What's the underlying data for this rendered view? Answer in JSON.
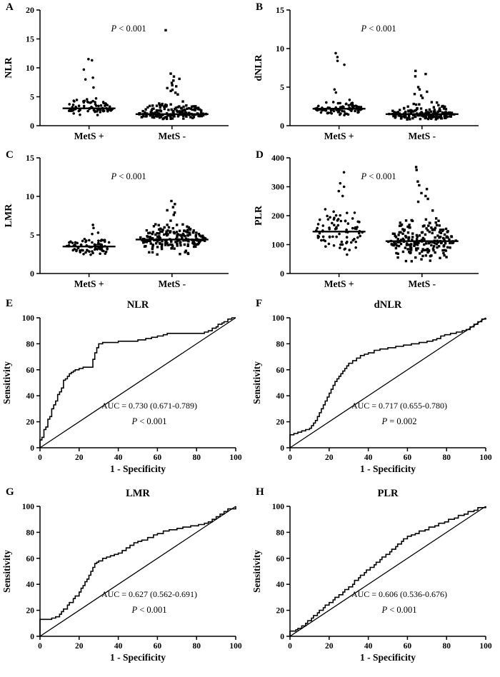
{
  "figure": {
    "description": "Eight-panel figure: dot plots of inflammatory ratios by MetS status (A-D) and ROC curves (E-H)",
    "colors": {
      "ink": "#000000",
      "background": "#ffffff"
    }
  },
  "chart_data": [
    {
      "panel": "A",
      "type": "scatter",
      "ylabel": "NLR",
      "ylim": [
        0,
        20
      ],
      "yticks": [
        0,
        5,
        10,
        15,
        20
      ],
      "categories": [
        "MetS +",
        "MetS -"
      ],
      "annotation": "P < 0.001",
      "groups": [
        {
          "label": "MetS +",
          "symbol": "circle",
          "n": 78,
          "median": 3.0,
          "bulk_range": [
            1.6,
            5.2
          ],
          "outliers": [
            6.6,
            8.0,
            8.3,
            9.7,
            11.3,
            11.5
          ]
        },
        {
          "label": "MetS -",
          "symbol": "square",
          "n": 165,
          "median": 2.0,
          "bulk_range": [
            0.9,
            4.6
          ],
          "outliers": [
            5.4,
            5.7,
            6.0,
            6.2,
            6.5,
            6.8,
            7.0,
            7.4,
            7.8,
            8.1,
            8.5,
            9.0,
            16.5
          ]
        }
      ]
    },
    {
      "panel": "B",
      "type": "scatter",
      "ylabel": "dNLR",
      "ylim": [
        0,
        15
      ],
      "yticks": [
        0,
        5,
        10,
        15
      ],
      "categories": [
        "MetS +",
        "MetS -"
      ],
      "annotation": "P < 0.001",
      "groups": [
        {
          "label": "MetS +",
          "symbol": "circle",
          "n": 78,
          "median": 2.2,
          "bulk_range": [
            1.0,
            3.6
          ],
          "outliers": [
            4.3,
            4.7,
            7.9,
            8.4,
            8.9,
            9.4
          ]
        },
        {
          "label": "MetS -",
          "symbol": "square",
          "n": 165,
          "median": 1.5,
          "bulk_range": [
            0.6,
            3.2
          ],
          "outliers": [
            3.6,
            3.9,
            4.1,
            4.4,
            4.7,
            5.0,
            6.4,
            6.7,
            7.1
          ]
        }
      ]
    },
    {
      "panel": "C",
      "type": "scatter",
      "ylabel": "LMR",
      "ylim": [
        0,
        15
      ],
      "yticks": [
        0,
        5,
        10,
        15
      ],
      "categories": [
        "MetS +",
        "MetS -"
      ],
      "annotation": "P < 0.001",
      "groups": [
        {
          "label": "MetS +",
          "symbol": "circle",
          "n": 78,
          "median": 3.5,
          "bulk_range": [
            2.0,
            5.4
          ],
          "outliers": [
            5.9,
            6.3
          ]
        },
        {
          "label": "MetS -",
          "symbol": "square",
          "n": 190,
          "median": 4.4,
          "bulk_range": [
            2.0,
            7.2
          ],
          "outliers": [
            7.6,
            7.9,
            8.2,
            8.6,
            9.0,
            9.4
          ]
        }
      ]
    },
    {
      "panel": "D",
      "type": "scatter",
      "ylabel": "PLR",
      "ylim": [
        0,
        400
      ],
      "yticks": [
        0,
        100,
        200,
        300,
        400
      ],
      "categories": [
        "MetS +",
        "MetS -"
      ],
      "annotation": "P < 0.001",
      "groups": [
        {
          "label": "MetS +",
          "symbol": "circle",
          "n": 80,
          "median": 145,
          "bulk_range": [
            45,
            255
          ],
          "outliers": [
            268,
            285,
            300,
            312,
            350
          ]
        },
        {
          "label": "MetS -",
          "symbol": "square",
          "n": 200,
          "median": 112,
          "bulk_range": [
            30,
            235
          ],
          "outliers": [
            248,
            258,
            268,
            278,
            292,
            305,
            318,
            358,
            368
          ]
        }
      ]
    },
    {
      "panel": "E",
      "type": "line",
      "title": "NLR",
      "xlabel": "1 - Specificity",
      "ylabel": "Sensitivity",
      "xlim": [
        0,
        100
      ],
      "ylim": [
        0,
        100
      ],
      "xticks": [
        0,
        20,
        40,
        60,
        80,
        100
      ],
      "yticks": [
        0,
        20,
        40,
        60,
        80,
        100
      ],
      "auc_label": "AUC = 0.730 (0.671-0.789)",
      "p_label": "P < 0.001",
      "diagonal": true,
      "roc_points": [
        [
          0,
          0
        ],
        [
          0,
          6
        ],
        [
          1,
          8
        ],
        [
          2,
          11
        ],
        [
          2,
          14
        ],
        [
          3,
          16
        ],
        [
          4,
          19
        ],
        [
          4,
          22
        ],
        [
          5,
          24
        ],
        [
          6,
          27
        ],
        [
          6,
          30
        ],
        [
          7,
          33
        ],
        [
          8,
          36
        ],
        [
          9,
          38
        ],
        [
          9,
          41
        ],
        [
          10,
          43
        ],
        [
          11,
          46
        ],
        [
          12,
          49
        ],
        [
          12,
          52
        ],
        [
          13,
          53
        ],
        [
          14,
          55
        ],
        [
          15,
          57
        ],
        [
          16,
          58
        ],
        [
          17,
          59
        ],
        [
          18,
          60
        ],
        [
          20,
          61
        ],
        [
          22,
          62
        ],
        [
          26,
          62
        ],
        [
          27,
          68
        ],
        [
          28,
          73
        ],
        [
          29,
          77
        ],
        [
          30,
          80
        ],
        [
          32,
          81
        ],
        [
          36,
          81
        ],
        [
          40,
          82
        ],
        [
          46,
          82
        ],
        [
          50,
          83
        ],
        [
          54,
          84
        ],
        [
          57,
          85
        ],
        [
          60,
          86
        ],
        [
          63,
          87
        ],
        [
          65,
          88
        ],
        [
          72,
          88
        ],
        [
          80,
          88
        ],
        [
          84,
          89
        ],
        [
          86,
          90
        ],
        [
          88,
          92
        ],
        [
          90,
          93
        ],
        [
          91,
          95
        ],
        [
          93,
          96
        ],
        [
          94,
          97
        ],
        [
          96,
          99
        ],
        [
          98,
          100
        ],
        [
          100,
          100
        ]
      ]
    },
    {
      "panel": "F",
      "type": "line",
      "title": "dNLR",
      "xlabel": "1 - Specificity",
      "ylabel": "Sensitivity",
      "xlim": [
        0,
        100
      ],
      "ylim": [
        0,
        100
      ],
      "xticks": [
        0,
        20,
        40,
        60,
        80,
        100
      ],
      "yticks": [
        0,
        20,
        40,
        60,
        80,
        100
      ],
      "auc_label": "AUC = 0.717 (0.655-0.780)",
      "p_label": "P = 0.002",
      "diagonal": true,
      "roc_points": [
        [
          0,
          0
        ],
        [
          0,
          10
        ],
        [
          2,
          11
        ],
        [
          4,
          12
        ],
        [
          6,
          13
        ],
        [
          8,
          14
        ],
        [
          10,
          15
        ],
        [
          11,
          17
        ],
        [
          12,
          19
        ],
        [
          13,
          21
        ],
        [
          14,
          24
        ],
        [
          15,
          27
        ],
        [
          16,
          30
        ],
        [
          17,
          33
        ],
        [
          18,
          36
        ],
        [
          19,
          39
        ],
        [
          20,
          42
        ],
        [
          21,
          45
        ],
        [
          22,
          48
        ],
        [
          23,
          51
        ],
        [
          24,
          53
        ],
        [
          25,
          55
        ],
        [
          26,
          57
        ],
        [
          27,
          59
        ],
        [
          28,
          61
        ],
        [
          29,
          63
        ],
        [
          30,
          65
        ],
        [
          32,
          67
        ],
        [
          34,
          69
        ],
        [
          36,
          71
        ],
        [
          38,
          72
        ],
        [
          40,
          73
        ],
        [
          43,
          75
        ],
        [
          46,
          76
        ],
        [
          50,
          77
        ],
        [
          54,
          78
        ],
        [
          58,
          79
        ],
        [
          62,
          80
        ],
        [
          66,
          81
        ],
        [
          70,
          82
        ],
        [
          73,
          83
        ],
        [
          75,
          84
        ],
        [
          77,
          86
        ],
        [
          79,
          87
        ],
        [
          82,
          88
        ],
        [
          85,
          89
        ],
        [
          88,
          90
        ],
        [
          90,
          91
        ],
        [
          92,
          93
        ],
        [
          94,
          95
        ],
        [
          96,
          97
        ],
        [
          98,
          99
        ],
        [
          100,
          100
        ]
      ]
    },
    {
      "panel": "G",
      "type": "line",
      "title": "LMR",
      "xlabel": "1 - Specificity",
      "ylabel": "Sensitivity",
      "xlim": [
        0,
        100
      ],
      "ylim": [
        0,
        100
      ],
      "xticks": [
        0,
        20,
        40,
        60,
        80,
        100
      ],
      "yticks": [
        0,
        20,
        40,
        60,
        80,
        100
      ],
      "auc_label": "AUC = 0.627 (0.562-0.691)",
      "p_label": "P < 0.001",
      "diagonal": true,
      "roc_points": [
        [
          0,
          0
        ],
        [
          0,
          13
        ],
        [
          4,
          13
        ],
        [
          6,
          14
        ],
        [
          8,
          15
        ],
        [
          10,
          17
        ],
        [
          11,
          19
        ],
        [
          12,
          21
        ],
        [
          14,
          24
        ],
        [
          15,
          26
        ],
        [
          17,
          29
        ],
        [
          18,
          31
        ],
        [
          20,
          34
        ],
        [
          21,
          37
        ],
        [
          22,
          39
        ],
        [
          23,
          42
        ],
        [
          24,
          44
        ],
        [
          25,
          47
        ],
        [
          26,
          50
        ],
        [
          27,
          53
        ],
        [
          28,
          56
        ],
        [
          29,
          57
        ],
        [
          30,
          58
        ],
        [
          32,
          60
        ],
        [
          34,
          61
        ],
        [
          36,
          62
        ],
        [
          38,
          63
        ],
        [
          40,
          64
        ],
        [
          42,
          66
        ],
        [
          44,
          68
        ],
        [
          46,
          70
        ],
        [
          48,
          72
        ],
        [
          50,
          73
        ],
        [
          52,
          74
        ],
        [
          55,
          76
        ],
        [
          58,
          78
        ],
        [
          60,
          79
        ],
        [
          63,
          81
        ],
        [
          66,
          82
        ],
        [
          70,
          83
        ],
        [
          73,
          84
        ],
        [
          77,
          85
        ],
        [
          81,
          86
        ],
        [
          84,
          87
        ],
        [
          86,
          88
        ],
        [
          88,
          90
        ],
        [
          90,
          92
        ],
        [
          92,
          94
        ],
        [
          94,
          96
        ],
        [
          96,
          98
        ],
        [
          100,
          100
        ]
      ]
    },
    {
      "panel": "H",
      "type": "line",
      "title": "PLR",
      "xlabel": "1 - Specificity",
      "ylabel": "Sensitivity",
      "xlim": [
        0,
        100
      ],
      "ylim": [
        0,
        100
      ],
      "xticks": [
        0,
        20,
        40,
        60,
        80,
        100
      ],
      "yticks": [
        0,
        20,
        40,
        60,
        80,
        100
      ],
      "auc_label": "AUC = 0.606 (0.536-0.676)",
      "p_label": "P < 0.001",
      "diagonal": true,
      "roc_points": [
        [
          0,
          0
        ],
        [
          0,
          4
        ],
        [
          3,
          5
        ],
        [
          4,
          6
        ],
        [
          6,
          8
        ],
        [
          8,
          10
        ],
        [
          9,
          12
        ],
        [
          11,
          14
        ],
        [
          12,
          16
        ],
        [
          14,
          18
        ],
        [
          15,
          20
        ],
        [
          17,
          22
        ],
        [
          18,
          24
        ],
        [
          20,
          26
        ],
        [
          22,
          28
        ],
        [
          23,
          30
        ],
        [
          25,
          32
        ],
        [
          27,
          34
        ],
        [
          28,
          36
        ],
        [
          30,
          38
        ],
        [
          32,
          40
        ],
        [
          33,
          43
        ],
        [
          35,
          45
        ],
        [
          36,
          47
        ],
        [
          38,
          49
        ],
        [
          39,
          51
        ],
        [
          41,
          53
        ],
        [
          43,
          55
        ],
        [
          44,
          57
        ],
        [
          46,
          59
        ],
        [
          47,
          61
        ],
        [
          49,
          63
        ],
        [
          51,
          65
        ],
        [
          52,
          67
        ],
        [
          54,
          69
        ],
        [
          55,
          71
        ],
        [
          57,
          73
        ],
        [
          58,
          75
        ],
        [
          60,
          77
        ],
        [
          62,
          78
        ],
        [
          64,
          79
        ],
        [
          66,
          81
        ],
        [
          69,
          82
        ],
        [
          71,
          84
        ],
        [
          74,
          85
        ],
        [
          76,
          87
        ],
        [
          79,
          88
        ],
        [
          81,
          90
        ],
        [
          84,
          91
        ],
        [
          86,
          93
        ],
        [
          89,
          94
        ],
        [
          91,
          96
        ],
        [
          94,
          97
        ],
        [
          96,
          99
        ],
        [
          100,
          100
        ]
      ]
    }
  ]
}
